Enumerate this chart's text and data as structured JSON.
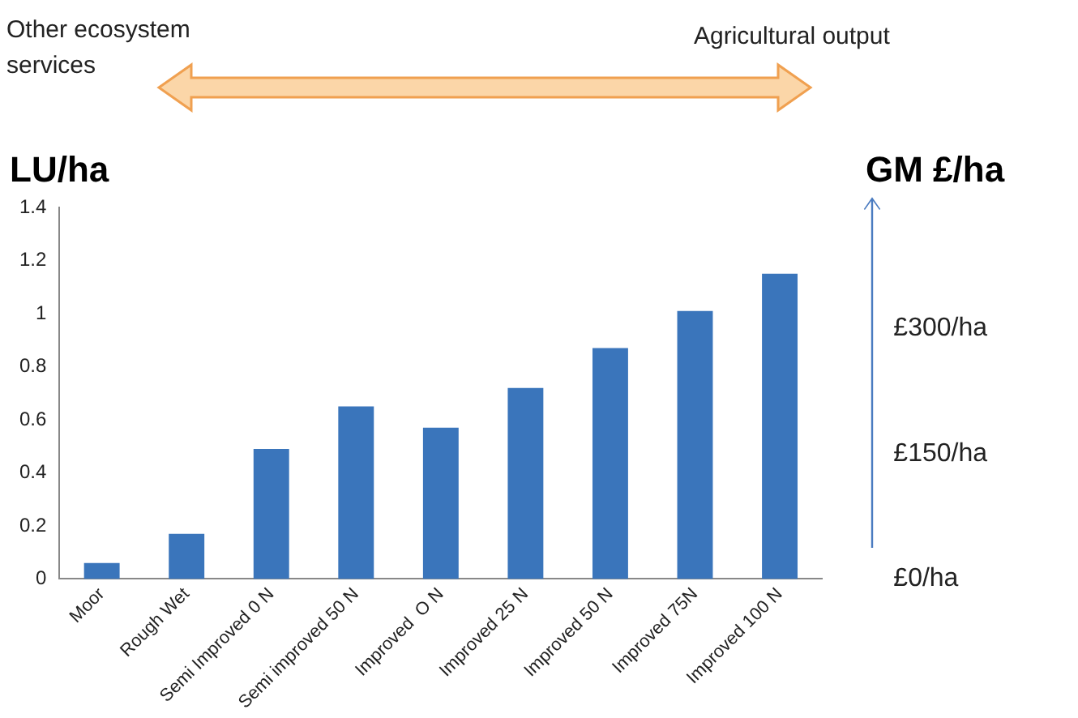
{
  "chart_data": {
    "type": "bar",
    "categories": [
      "Moor",
      "Rough Wet",
      "Semi Improved 0 N",
      "Semi improved 50 N",
      "Improved  O N",
      "Improved 25 N",
      "Improved 50 N",
      "Improved 75N",
      "Improved 100 N"
    ],
    "values": [
      0.06,
      0.17,
      0.49,
      0.65,
      0.57,
      0.72,
      0.87,
      1.01,
      1.15
    ],
    "color": "#3a75bb",
    "ylim": [
      0,
      1.4
    ],
    "yticks": [
      0,
      0.2,
      0.4,
      0.6,
      0.8,
      1,
      1.2,
      1.4
    ],
    "y2lim": [
      0,
      445
    ],
    "y2ticks": [
      {
        "value": 0,
        "label": "£0/ha"
      },
      {
        "value": 150,
        "label": "£150/ha"
      },
      {
        "value": 300,
        "label": "£300/ha"
      }
    ],
    "ylabel": "LU/ha",
    "y2label": "GM £/ha",
    "grid": false,
    "legend": false,
    "annotations": [
      "Other ecosystem services",
      "Agricultural output"
    ]
  }
}
